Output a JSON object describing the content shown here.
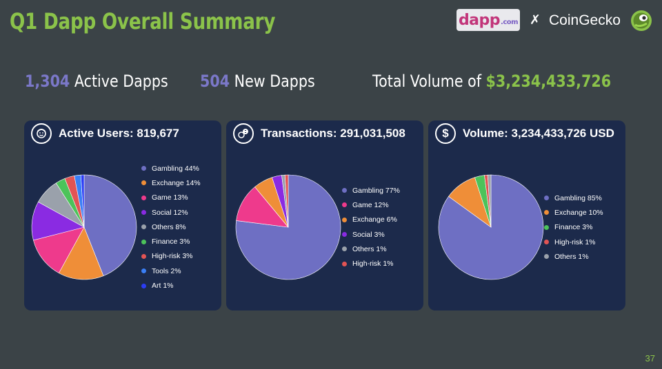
{
  "slide": {
    "title": "Q1 Dapp Overall Summary",
    "page_number": "37",
    "accent_color": "#8bc34a",
    "brands": {
      "dapp_label": "dapp",
      "dapp_suffix": ".com",
      "x_mark": "✗",
      "coingecko_label": "CoinGecko"
    }
  },
  "summary": {
    "active_dapps_value": "1,304",
    "active_dapps_label": "Active Dapps",
    "new_dapps_value": "504",
    "new_dapps_label": "New Dapps",
    "volume_label": "Total Volume of",
    "volume_value": "$3,234,433,726"
  },
  "colors": {
    "Gambling": "#6e6fc3",
    "Exchange": "#ef8e38",
    "Game": "#ee3a8c",
    "Social": "#8a2be2",
    "Others": "#9aa1ab",
    "Finance": "#4cc35a",
    "High-risk": "#e25454",
    "Tools": "#3a7ff6",
    "Art": "#2b3cf5"
  },
  "chart_data": [
    {
      "type": "pie",
      "title": "Active Users: 819,677",
      "icon": "user-face-icon",
      "categories": [
        "Gambling",
        "Exchange",
        "Game",
        "Social",
        "Others",
        "Finance",
        "High-risk",
        "Tools",
        "Art"
      ],
      "values": [
        44,
        14,
        13,
        12,
        8,
        3,
        3,
        2,
        1
      ],
      "legend_labels": [
        "Gambling 44%",
        "Exchange 14%",
        "Game 13%",
        "Social 12%",
        "Others 8%",
        "Finance 3%",
        "High-risk 3%",
        "Tools 2%",
        "Art 1%"
      ],
      "legend": "right"
    },
    {
      "type": "pie",
      "title": "Transactions: 291,031,508",
      "icon": "coins-transfer-icon",
      "categories": [
        "Gambling",
        "Game",
        "Exchange",
        "Social",
        "Others",
        "High-risk"
      ],
      "values": [
        77,
        12,
        6,
        3,
        1,
        1
      ],
      "legend_labels": [
        "Gambling 77%",
        "Game 12%",
        "Exchange 6%",
        "Social 3%",
        "Others 1%",
        "High-risk 1%"
      ],
      "legend": "right"
    },
    {
      "type": "pie",
      "title": "Volume: 3,234,433,726 USD",
      "icon": "dollar-icon",
      "categories": [
        "Gambling",
        "Exchange",
        "Finance",
        "High-risk",
        "Others"
      ],
      "values": [
        85,
        10,
        3,
        1,
        1
      ],
      "legend_labels": [
        "Gambling 85%",
        "Exchange 10%",
        "Finance 3%",
        "High-risk 1%",
        "Others 1%"
      ],
      "legend": "right"
    }
  ]
}
